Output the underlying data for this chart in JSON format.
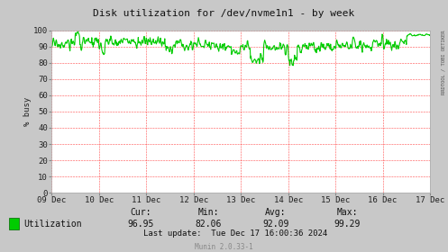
{
  "title": "Disk utilization for /dev/nvme1n1 - by week",
  "ylabel": "% busy",
  "right_axis_label": "RRDTOOL / TOBI OETIKER",
  "ylim": [
    0,
    100
  ],
  "yticks": [
    0,
    10,
    20,
    30,
    40,
    50,
    60,
    70,
    80,
    90,
    100
  ],
  "x_labels": [
    "09 Dec",
    "10 Dec",
    "11 Dec",
    "12 Dec",
    "13 Dec",
    "14 Dec",
    "15 Dec",
    "16 Dec",
    "17 Dec"
  ],
  "line_color": "#00cc00",
  "outer_bg_color": "#c8c8c8",
  "plot_bg_color": "#ffffff",
  "grid_color": "#ff0000",
  "vline_color": "#ff0000",
  "legend_label": "Utilization",
  "legend_box_color": "#00cc00",
  "cur_val": "96.95",
  "min_val": "82.06",
  "avg_val": "92.09",
  "max_val": "99.29",
  "last_update": "Last update:  Tue Dec 17 16:00:36 2024",
  "munin_text": "Munin 2.0.33-1",
  "title_fontsize": 8,
  "axis_fontsize": 6.5,
  "legend_fontsize": 7,
  "n_points": 800,
  "base_value": 91,
  "noise_amplitude": 3,
  "seed": 17
}
